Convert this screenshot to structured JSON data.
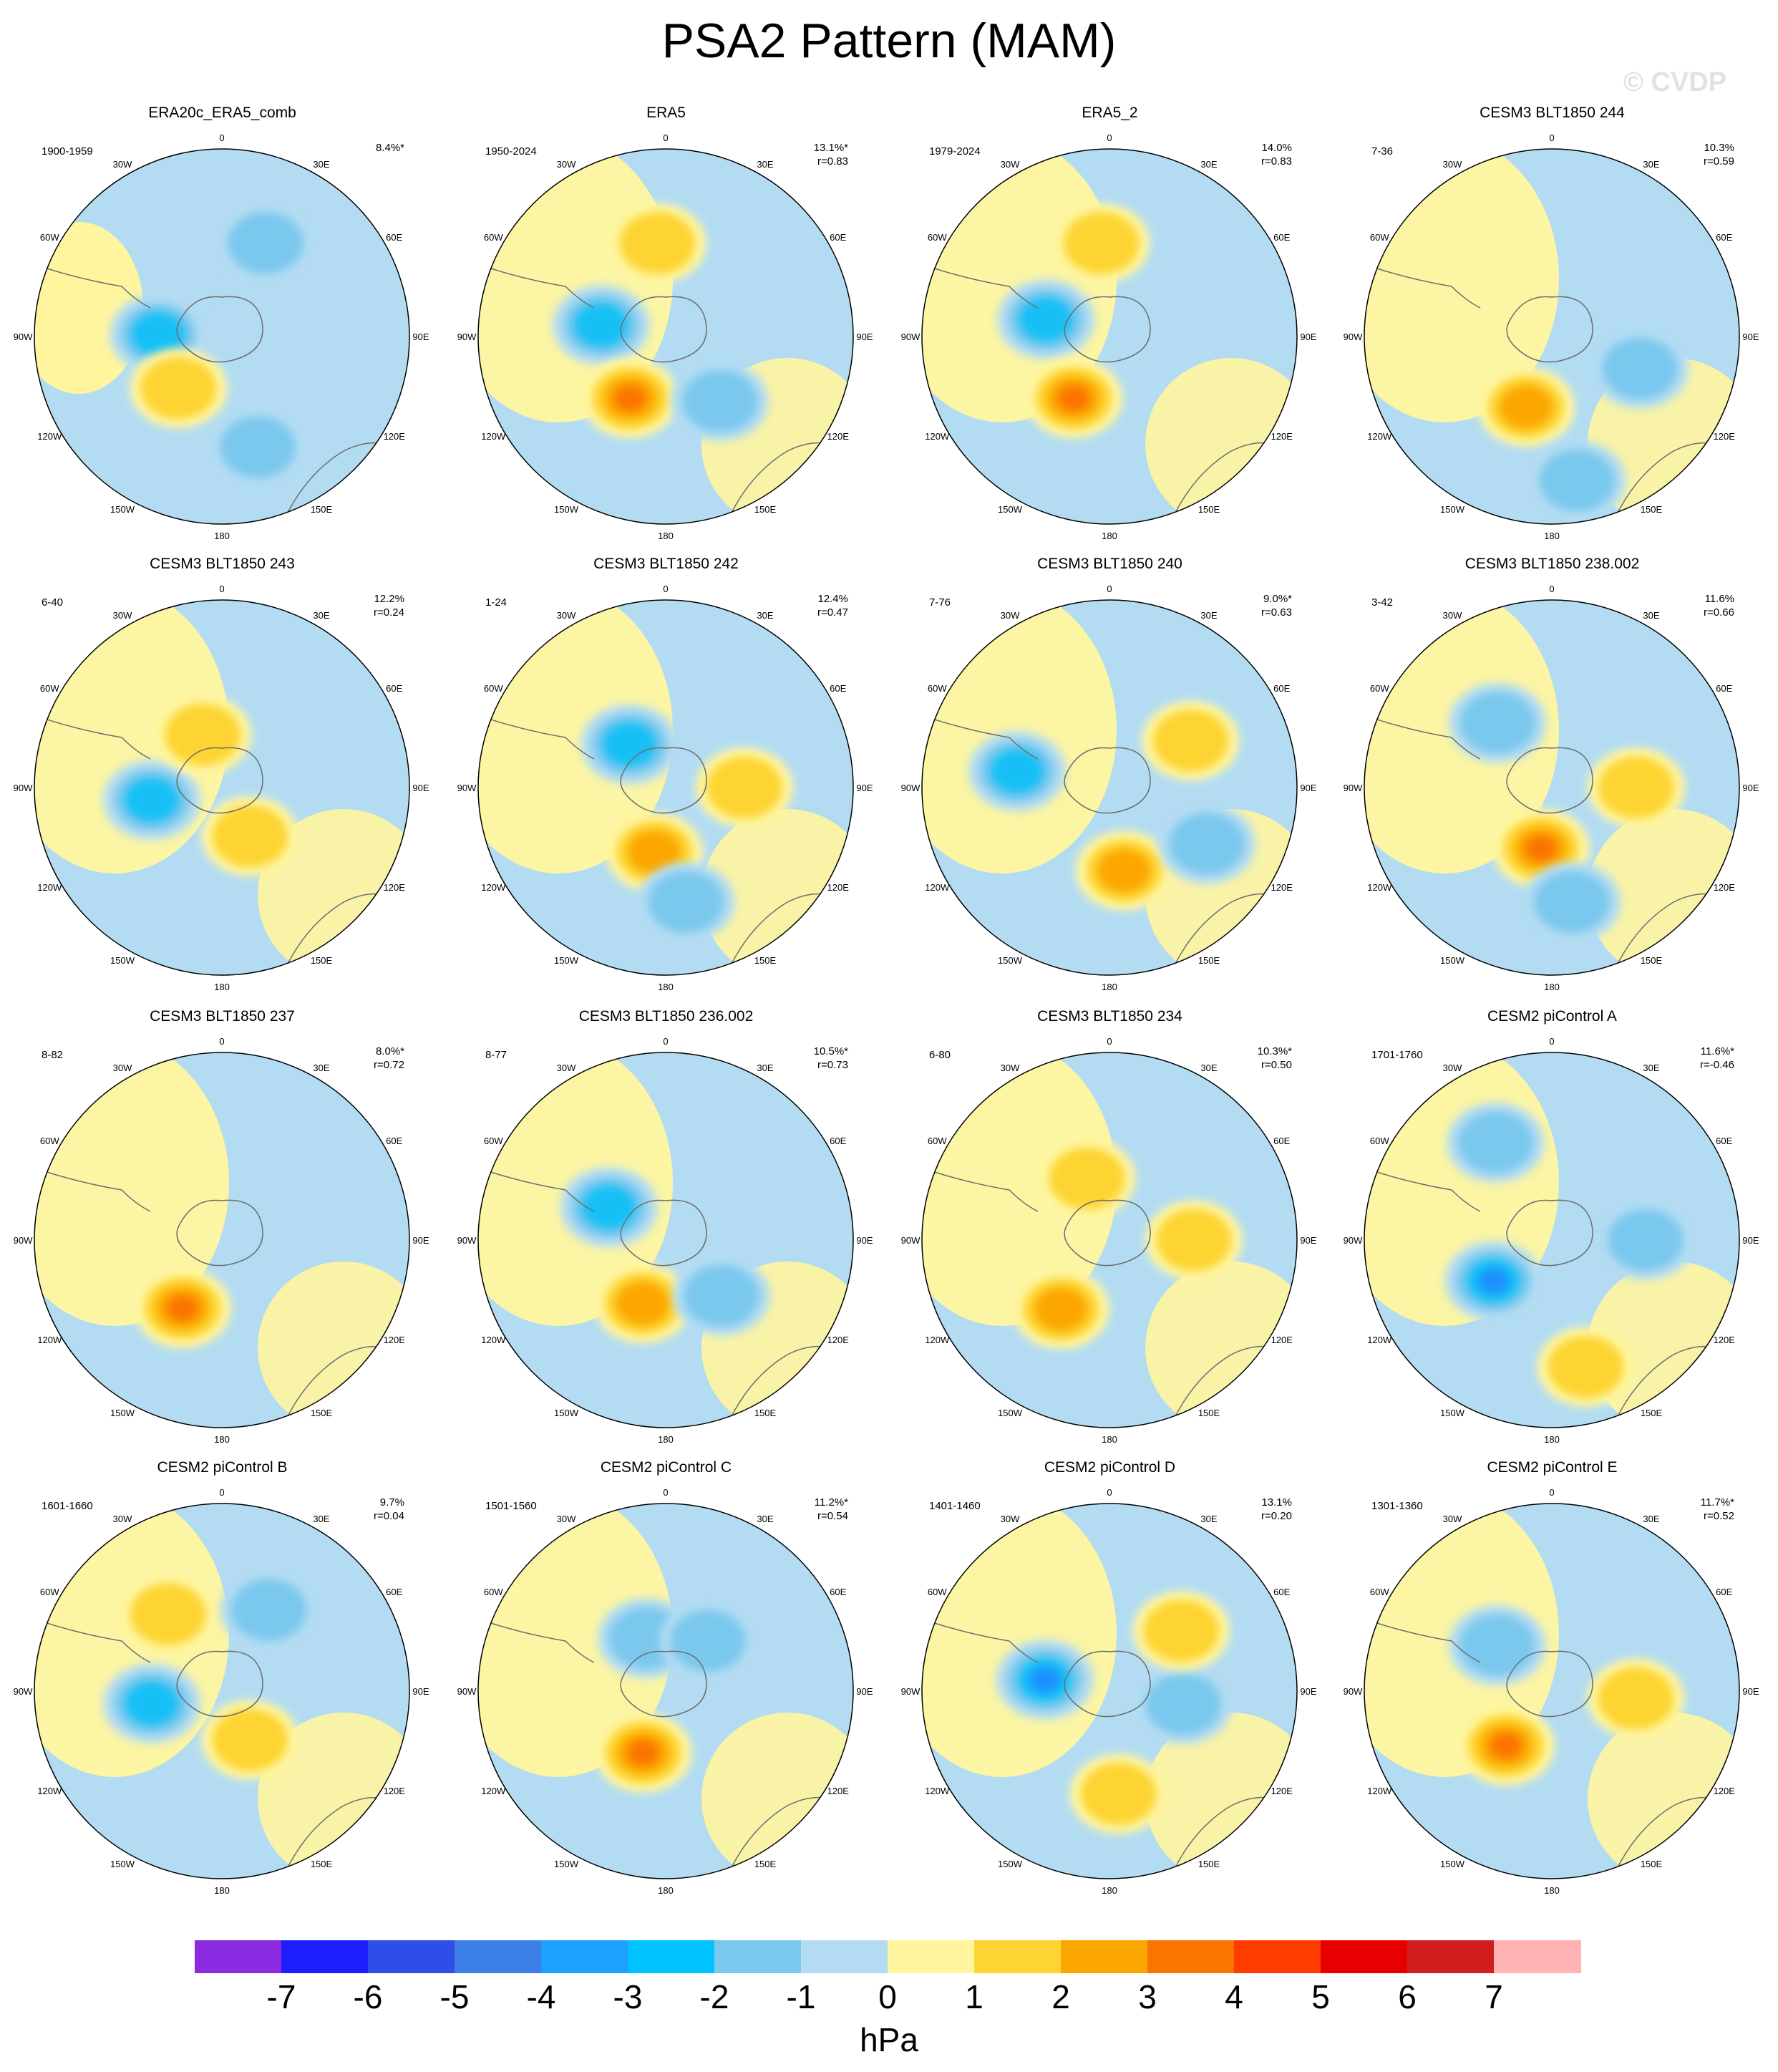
{
  "title": "PSA2 Pattern (MAM)",
  "watermark": "© CVDP",
  "colors": {
    "fill_neg1": "#b3dcf2",
    "fill_neg2": "#7ac8ee",
    "fill_neg3": "#12c0f5",
    "fill_neg4": "#1f90ff",
    "fill_pos1": "#fff59f",
    "fill_pos2": "#fdd433",
    "fill_pos3": "#fca700",
    "fill_pos4": "#fa7500",
    "coastline": "#6e6e6e"
  },
  "map_labels": {
    "l0": "0",
    "l30e": "30E",
    "l60e": "60E",
    "l90e": "90E",
    "l120e": "120E",
    "l150e": "150E",
    "l180": "180",
    "l150w": "150W",
    "l120w": "120W",
    "l90w": "90W",
    "l60w": "60W",
    "l30w": "30W"
  },
  "panels": [
    {
      "title": "ERA20c_ERA5_comb",
      "years": "1900-1959",
      "pct": "8.4%*",
      "r": "",
      "blobs": [
        {
          "lon": -88,
          "r": 0.34,
          "level": -3
        },
        {
          "lon": -140,
          "r": 0.36,
          "level": 2
        },
        {
          "lon": 162,
          "r": 0.62,
          "level": -2
        },
        {
          "lon": 25,
          "r": 0.55,
          "level": -2
        }
      ],
      "bg": "negative"
    },
    {
      "title": "ERA5",
      "years": "1950-2024",
      "pct": "13.1%*",
      "r": "r=0.83",
      "blobs": [
        {
          "lon": -80,
          "r": 0.35,
          "level": -3
        },
        {
          "lon": -150,
          "r": 0.38,
          "level": 4
        },
        {
          "lon": 140,
          "r": 0.45,
          "level": -2
        },
        {
          "lon": -5,
          "r": 0.5,
          "level": 2
        }
      ],
      "bg": "mixed"
    },
    {
      "title": "ERA5_2",
      "years": "1979-2024",
      "pct": "14.0%",
      "r": "r=0.83",
      "blobs": [
        {
          "lon": -75,
          "r": 0.35,
          "level": -3
        },
        {
          "lon": -150,
          "r": 0.38,
          "level": 4
        },
        {
          "lon": -5,
          "r": 0.5,
          "level": 2
        }
      ],
      "bg": "mixed"
    },
    {
      "title": "CESM3 BLT1850 244",
      "years": "7-36",
      "pct": "10.3%",
      "r": "r=0.59",
      "blobs": [
        {
          "lon": -160,
          "r": 0.4,
          "level": 3
        },
        {
          "lon": 110,
          "r": 0.5,
          "level": -2
        },
        {
          "lon": 170,
          "r": 0.78,
          "level": -2
        }
      ],
      "bg": "mixed"
    },
    {
      "title": "CESM3 BLT1850 243",
      "years": "6-40",
      "pct": "12.2%",
      "r": "r=0.24",
      "blobs": [
        {
          "lon": -100,
          "r": 0.38,
          "level": -3
        },
        {
          "lon": -20,
          "r": 0.3,
          "level": 2
        },
        {
          "lon": 150,
          "r": 0.3,
          "level": 2
        }
      ],
      "bg": "mixed"
    },
    {
      "title": "CESM3 BLT1850 242",
      "years": "1-24",
      "pct": "12.4%",
      "r": "r=0.47",
      "blobs": [
        {
          "lon": -40,
          "r": 0.3,
          "level": -3
        },
        {
          "lon": -170,
          "r": 0.35,
          "level": 3
        },
        {
          "lon": 90,
          "r": 0.42,
          "level": 2
        },
        {
          "lon": 170,
          "r": 0.62,
          "level": -2
        }
      ],
      "bg": "mixed"
    },
    {
      "title": "CESM3 BLT1850 240",
      "years": "7-76",
      "pct": "9.0%*",
      "r": "r=0.63",
      "blobs": [
        {
          "lon": -80,
          "r": 0.5,
          "level": -3
        },
        {
          "lon": 170,
          "r": 0.45,
          "level": 3
        },
        {
          "lon": 60,
          "r": 0.5,
          "level": 2
        },
        {
          "lon": 120,
          "r": 0.6,
          "level": -2
        }
      ],
      "bg": "mixed"
    },
    {
      "title": "CESM3 BLT1850 238.002",
      "years": "3-42",
      "pct": "11.6%",
      "r": "r=0.66",
      "blobs": [
        {
          "lon": -40,
          "r": 0.45,
          "level": -2
        },
        {
          "lon": -170,
          "r": 0.33,
          "level": 4
        },
        {
          "lon": 90,
          "r": 0.45,
          "level": 2
        },
        {
          "lon": 170,
          "r": 0.62,
          "level": -2
        }
      ],
      "bg": "mixed"
    },
    {
      "title": "CESM3 BLT1850 237",
      "years": "8-82",
      "pct": "8.0%*",
      "r": "r=0.72",
      "blobs": [
        {
          "lon": -150,
          "r": 0.42,
          "level": 4
        }
      ],
      "bg": "mixed"
    },
    {
      "title": "CESM3 BLT1850 236.002",
      "years": "8-77",
      "pct": "10.5%*",
      "r": "r=0.73",
      "blobs": [
        {
          "lon": -60,
          "r": 0.35,
          "level": -3
        },
        {
          "lon": -160,
          "r": 0.36,
          "level": 3
        },
        {
          "lon": 135,
          "r": 0.42,
          "level": -2
        }
      ],
      "bg": "mixed"
    },
    {
      "title": "CESM3 BLT1850 234",
      "years": "6-80",
      "pct": "10.3%*",
      "r": "r=0.50",
      "blobs": [
        {
          "lon": -145,
          "r": 0.45,
          "level": 3
        },
        {
          "lon": -20,
          "r": 0.35,
          "level": 2
        },
        {
          "lon": 90,
          "r": 0.45,
          "level": 2
        }
      ],
      "bg": "mixed"
    },
    {
      "title": "CESM2 piControl A",
      "years": "1701-1760",
      "pct": "11.6%*",
      "r": "r=-0.46",
      "blobs": [
        {
          "lon": -125,
          "r": 0.38,
          "level": -4
        },
        {
          "lon": 90,
          "r": 0.5,
          "level": -2
        },
        {
          "lon": -30,
          "r": 0.6,
          "level": -2
        },
        {
          "lon": 165,
          "r": 0.7,
          "level": 2
        }
      ],
      "bg": "mixed"
    },
    {
      "title": "CESM2 piControl B",
      "years": "1601-1660",
      "pct": "9.7%",
      "r": "r=0.04",
      "blobs": [
        {
          "lon": -100,
          "r": 0.38,
          "level": -3
        },
        {
          "lon": -35,
          "r": 0.5,
          "level": 2
        },
        {
          "lon": 30,
          "r": 0.5,
          "level": -2
        },
        {
          "lon": 150,
          "r": 0.3,
          "level": 2
        }
      ],
      "bg": "mixed"
    },
    {
      "title": "CESM2 piControl C",
      "years": "1501-1560",
      "pct": "11.2%*",
      "r": "r=0.54",
      "blobs": [
        {
          "lon": -20,
          "r": 0.3,
          "level": -2
        },
        {
          "lon": -160,
          "r": 0.35,
          "level": 4
        },
        {
          "lon": 40,
          "r": 0.35,
          "level": -2
        }
      ],
      "bg": "mixed"
    },
    {
      "title": "CESM2 piControl D",
      "years": "1401-1460",
      "pct": "13.1%",
      "r": "r=0.20",
      "blobs": [
        {
          "lon": -80,
          "r": 0.35,
          "level": -4
        },
        {
          "lon": 175,
          "r": 0.55,
          "level": 2
        },
        {
          "lon": 100,
          "r": 0.4,
          "level": -2
        },
        {
          "lon": 50,
          "r": 0.5,
          "level": 2
        }
      ],
      "bg": "mixed"
    },
    {
      "title": "CESM2 piControl E",
      "years": "1301-1360",
      "pct": "11.7%*",
      "r": "r=0.52",
      "blobs": [
        {
          "lon": -140,
          "r": 0.38,
          "level": 4
        },
        {
          "lon": 95,
          "r": 0.45,
          "level": 2
        },
        {
          "lon": -50,
          "r": 0.38,
          "level": -2
        }
      ],
      "bg": "mixed"
    }
  ],
  "colorbar": {
    "boxes": [
      "#8a2be2",
      "#1e1eff",
      "#2d4fe8",
      "#3c7fe6",
      "#1ea0ff",
      "#00c2ff",
      "#7ac8ee",
      "#b3dcf2",
      "#fff59f",
      "#fdd433",
      "#fca700",
      "#fa7500",
      "#ff3d00",
      "#e80000",
      "#d01e1e",
      "#ffb3b3"
    ],
    "ticks": [
      "-7",
      "-6",
      "-5",
      "-4",
      "-3",
      "-2",
      "-1",
      "0",
      "1",
      "2",
      "3",
      "4",
      "5",
      "6",
      "7"
    ],
    "unit": "hPa"
  }
}
